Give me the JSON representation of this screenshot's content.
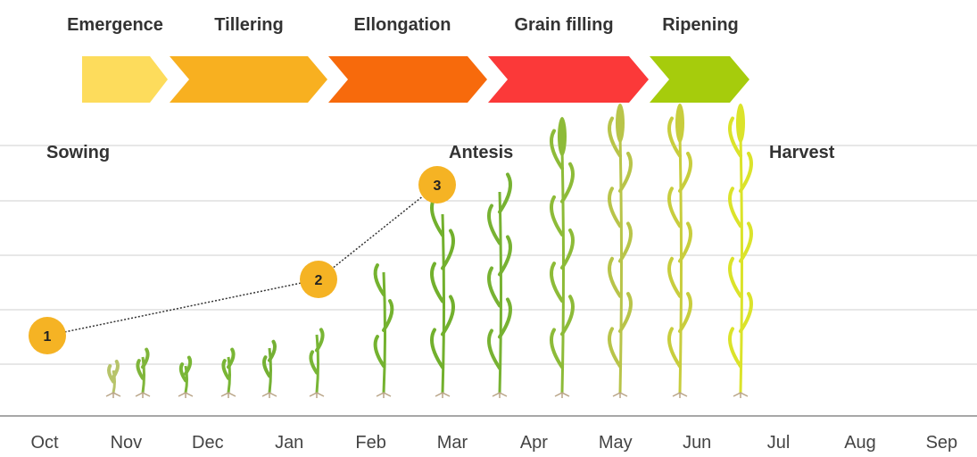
{
  "stages": [
    {
      "label": "Emergence"
    },
    {
      "label": "Tillering"
    },
    {
      "label": "Ellongation"
    },
    {
      "label": "Grain filling"
    },
    {
      "label": "Ripening"
    }
  ],
  "events": [
    {
      "label": "Sowing"
    },
    {
      "label": "Antesis"
    },
    {
      "label": "Harvest"
    }
  ],
  "markers": [
    "1",
    "2",
    "3"
  ],
  "months": [
    "Oct",
    "Nov",
    "Dec",
    "Jan",
    "Feb",
    "Mar",
    "Apr",
    "May",
    "Jun",
    "Jul",
    "Aug",
    "Sep"
  ]
}
